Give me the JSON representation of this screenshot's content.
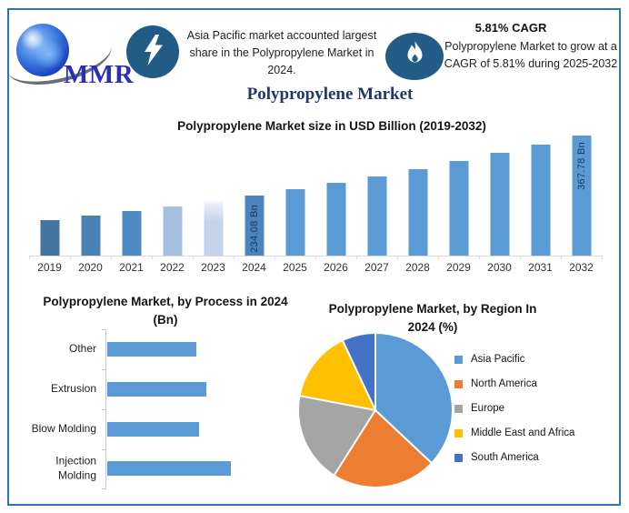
{
  "header": {
    "logo_text": "MMR",
    "highlight_text": "Asia Pacific market accounted largest share in the Polypropylene Market in 2024.",
    "cagr_headline": "5.81% CAGR",
    "cagr_text": "Polypropylene Market to grow at a CAGR of 5.81% during 2025-2032",
    "main_title": "Polypropylene Market"
  },
  "colors": {
    "frame_border": "#2E75B6",
    "badge_blue": "#235C84",
    "title_navy": "#1F3864",
    "logo_blue": "#2B2FB5",
    "accent_blue": "#5B9BD5",
    "bar_value_label": "#17375E",
    "axis_gray": "#D9D9D9"
  },
  "chart_data": [
    {
      "type": "bar",
      "title": "Polypropylene Market size in USD Billion (2019-2032)",
      "unit": "USD Billion",
      "categories": [
        "2019",
        "2020",
        "2021",
        "2022",
        "2023",
        "2024",
        "2025",
        "2026",
        "2027",
        "2028",
        "2029",
        "2030",
        "2031",
        "2032"
      ],
      "values": [
        179,
        189,
        199.5,
        210.5,
        222,
        234.08,
        247.68,
        262.07,
        277.3,
        293.41,
        310.46,
        328.5,
        347.58,
        367.78
      ],
      "values_estimated_except_labeled": true,
      "data_labels": [
        {
          "category": "2024",
          "text": "234.08 Bn",
          "anchor": "bottom"
        },
        {
          "category": "2032",
          "text": "367.78 Bn",
          "anchor": "top"
        }
      ],
      "bar_colors": [
        "#44759E",
        "#4B80B2",
        "#4E8BC2",
        "#A6C1DF",
        "#C5D3EC",
        "#4A86BD",
        "#5B9BD5",
        "#5B9BD5",
        "#5B9BD5",
        "#5B9BD5",
        "#5B9BD5",
        "#5B9BD5",
        "#5B9BD5",
        "#5B9BD5"
      ],
      "fade_bar_index": 4,
      "axis_min": 100,
      "axis_max": 367.78,
      "xlabel": "",
      "ylabel": "",
      "grid": false,
      "value_axis_hidden": true
    },
    {
      "type": "bar",
      "orientation": "horizontal",
      "title": "Polypropylene Market, by Process in 2024 (Bn)",
      "unit": "Bn",
      "categories": [
        "Other",
        "Extrusion",
        "Blow Molding",
        "Injection Molding"
      ],
      "values": [
        51.5,
        57.5,
        53,
        71.5
      ],
      "values_estimated": true,
      "bar_color": "#5B9BD5",
      "grid": false,
      "value_axis_hidden": true
    },
    {
      "type": "pie",
      "title": "Polypropylene Market, by Region In 2024 (%)",
      "unit": "%",
      "labels": [
        "Asia Pacific",
        "North America",
        "Europe",
        "Middle East and Africa",
        "South America"
      ],
      "values": [
        37,
        22,
        19,
        15,
        7
      ],
      "values_estimated": true,
      "colors": [
        "#5B9BD5",
        "#ED7D31",
        "#A5A5A5",
        "#FFC000",
        "#4472C4"
      ],
      "legend_position": "right",
      "start_angle_deg": 0
    }
  ]
}
